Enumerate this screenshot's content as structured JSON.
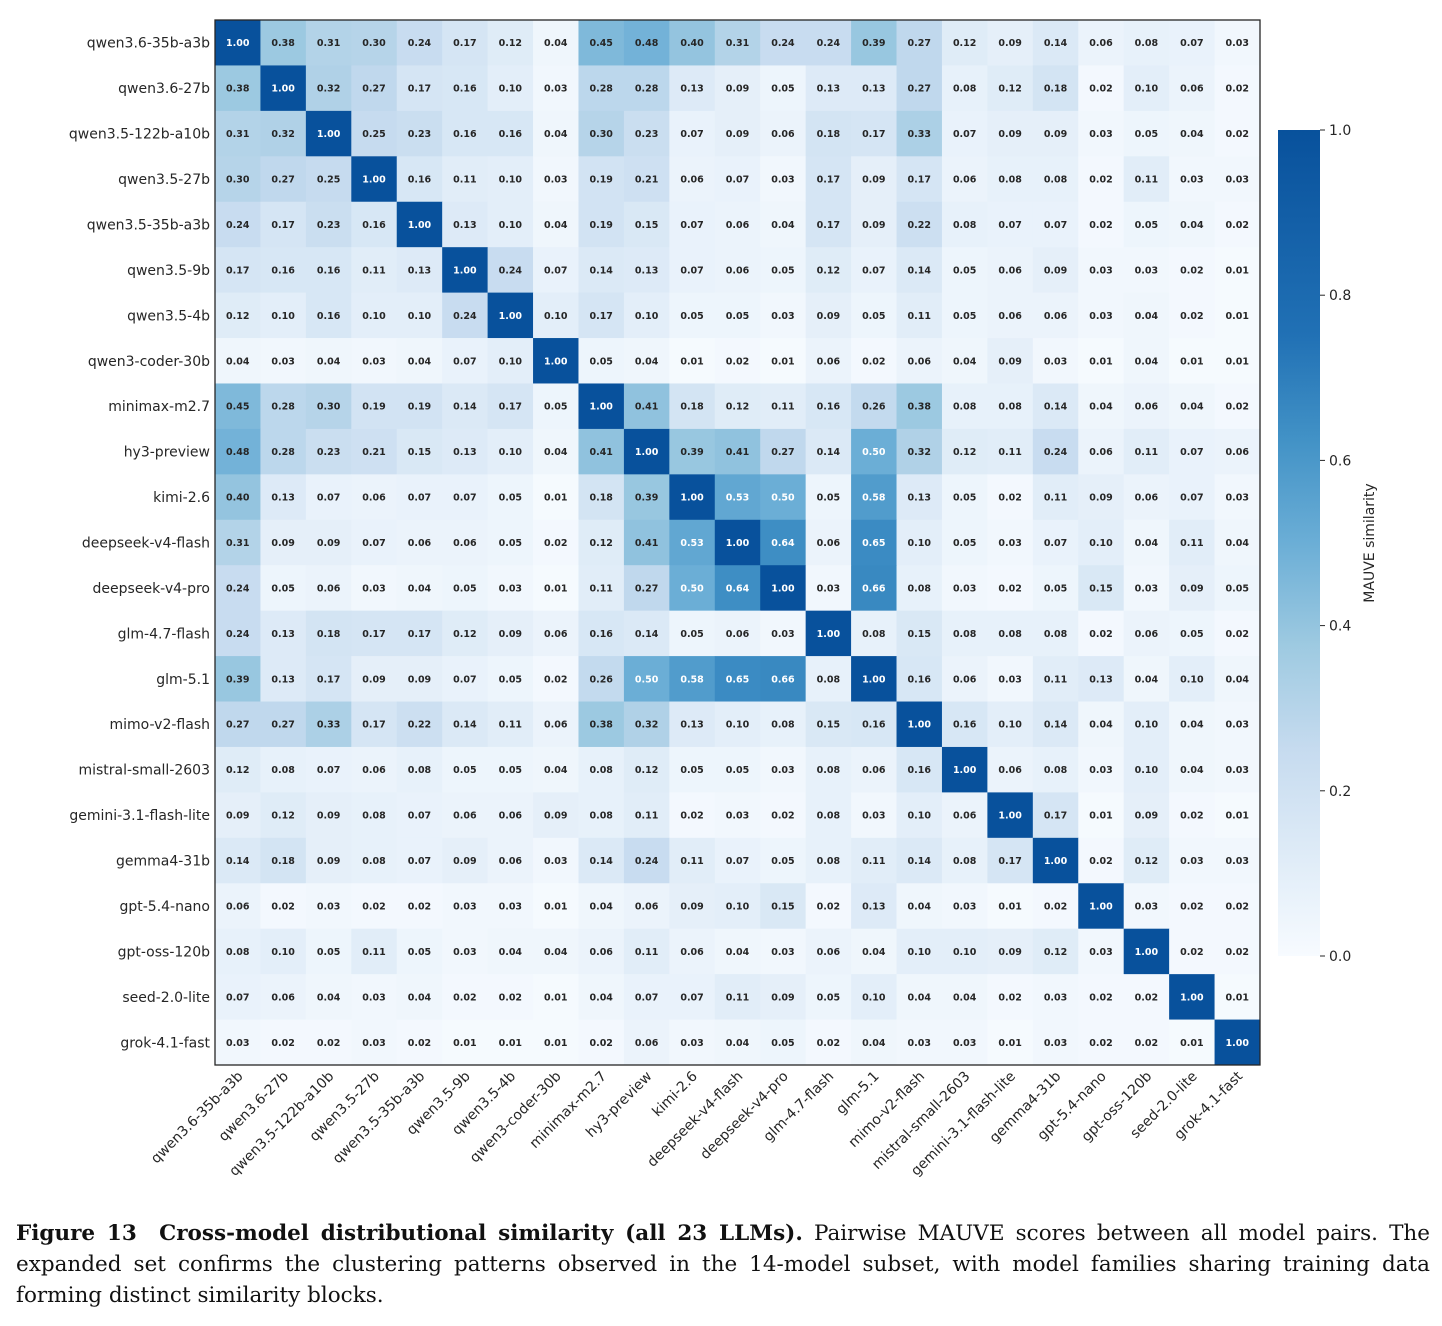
{
  "chart_data": {
    "type": "heatmap",
    "title": "",
    "xlabel": "",
    "ylabel": "",
    "colorbar": {
      "label": "MAUVE similarity",
      "range": [
        0.0,
        1.0
      ],
      "ticks": [
        0.0,
        0.2,
        0.4,
        0.6,
        0.8,
        1.0
      ],
      "tick_labels": [
        "0.0",
        "0.2",
        "0.4",
        "0.6",
        "0.8",
        "1.0"
      ],
      "colormap": "Blues",
      "colors": {
        "low": "#f7fbff",
        "high": "#08519c"
      }
    },
    "labels": [
      "qwen3.6-35b-a3b",
      "qwen3.6-27b",
      "qwen3.5-122b-a10b",
      "qwen3.5-27b",
      "qwen3.5-35b-a3b",
      "qwen3.5-9b",
      "qwen3.5-4b",
      "qwen3-coder-30b",
      "minimax-m2.7",
      "hy3-preview",
      "kimi-2.6",
      "deepseek-v4-flash",
      "deepseek-v4-pro",
      "glm-4.7-flash",
      "glm-5.1",
      "mimo-v2-flash",
      "mistral-small-2603",
      "gemini-3.1-flash-lite",
      "gemma4-31b",
      "gpt-5.4-nano",
      "gpt-oss-120b",
      "seed-2.0-lite",
      "grok-4.1-fast"
    ],
    "matrix": [
      [
        1.0,
        0.38,
        0.31,
        0.3,
        0.24,
        0.17,
        0.12,
        0.04,
        0.45,
        0.48,
        0.4,
        0.31,
        0.24,
        0.24,
        0.39,
        0.27,
        0.12,
        0.09,
        0.14,
        0.06,
        0.08,
        0.07,
        0.03
      ],
      [
        0.38,
        1.0,
        0.32,
        0.27,
        0.17,
        0.16,
        0.1,
        0.03,
        0.28,
        0.28,
        0.13,
        0.09,
        0.05,
        0.13,
        0.13,
        0.27,
        0.08,
        0.12,
        0.18,
        0.02,
        0.1,
        0.06,
        0.02
      ],
      [
        0.31,
        0.32,
        1.0,
        0.25,
        0.23,
        0.16,
        0.16,
        0.04,
        0.3,
        0.23,
        0.07,
        0.09,
        0.06,
        0.18,
        0.17,
        0.33,
        0.07,
        0.09,
        0.09,
        0.03,
        0.05,
        0.04,
        0.02
      ],
      [
        0.3,
        0.27,
        0.25,
        1.0,
        0.16,
        0.11,
        0.1,
        0.03,
        0.19,
        0.21,
        0.06,
        0.07,
        0.03,
        0.17,
        0.09,
        0.17,
        0.06,
        0.08,
        0.08,
        0.02,
        0.11,
        0.03,
        0.03
      ],
      [
        0.24,
        0.17,
        0.23,
        0.16,
        1.0,
        0.13,
        0.1,
        0.04,
        0.19,
        0.15,
        0.07,
        0.06,
        0.04,
        0.17,
        0.09,
        0.22,
        0.08,
        0.07,
        0.07,
        0.02,
        0.05,
        0.04,
        0.02
      ],
      [
        0.17,
        0.16,
        0.16,
        0.11,
        0.13,
        1.0,
        0.24,
        0.07,
        0.14,
        0.13,
        0.07,
        0.06,
        0.05,
        0.12,
        0.07,
        0.14,
        0.05,
        0.06,
        0.09,
        0.03,
        0.03,
        0.02,
        0.01
      ],
      [
        0.12,
        0.1,
        0.16,
        0.1,
        0.1,
        0.24,
        1.0,
        0.1,
        0.17,
        0.1,
        0.05,
        0.05,
        0.03,
        0.09,
        0.05,
        0.11,
        0.05,
        0.06,
        0.06,
        0.03,
        0.04,
        0.02,
        0.01
      ],
      [
        0.04,
        0.03,
        0.04,
        0.03,
        0.04,
        0.07,
        0.1,
        1.0,
        0.05,
        0.04,
        0.01,
        0.02,
        0.01,
        0.06,
        0.02,
        0.06,
        0.04,
        0.09,
        0.03,
        0.01,
        0.04,
        0.01,
        0.01
      ],
      [
        0.45,
        0.28,
        0.3,
        0.19,
        0.19,
        0.14,
        0.17,
        0.05,
        1.0,
        0.41,
        0.18,
        0.12,
        0.11,
        0.16,
        0.26,
        0.38,
        0.08,
        0.08,
        0.14,
        0.04,
        0.06,
        0.04,
        0.02
      ],
      [
        0.48,
        0.28,
        0.23,
        0.21,
        0.15,
        0.13,
        0.1,
        0.04,
        0.41,
        1.0,
        0.39,
        0.41,
        0.27,
        0.14,
        0.5,
        0.32,
        0.12,
        0.11,
        0.24,
        0.06,
        0.11,
        0.07,
        0.06
      ],
      [
        0.4,
        0.13,
        0.07,
        0.06,
        0.07,
        0.07,
        0.05,
        0.01,
        0.18,
        0.39,
        1.0,
        0.53,
        0.5,
        0.05,
        0.58,
        0.13,
        0.05,
        0.02,
        0.11,
        0.09,
        0.06,
        0.07,
        0.03
      ],
      [
        0.31,
        0.09,
        0.09,
        0.07,
        0.06,
        0.06,
        0.05,
        0.02,
        0.12,
        0.41,
        0.53,
        1.0,
        0.64,
        0.06,
        0.65,
        0.1,
        0.05,
        0.03,
        0.07,
        0.1,
        0.04,
        0.11,
        0.04
      ],
      [
        0.24,
        0.05,
        0.06,
        0.03,
        0.04,
        0.05,
        0.03,
        0.01,
        0.11,
        0.27,
        0.5,
        0.64,
        1.0,
        0.03,
        0.66,
        0.08,
        0.03,
        0.02,
        0.05,
        0.15,
        0.03,
        0.09,
        0.05
      ],
      [
        0.24,
        0.13,
        0.18,
        0.17,
        0.17,
        0.12,
        0.09,
        0.06,
        0.16,
        0.14,
        0.05,
        0.06,
        0.03,
        1.0,
        0.08,
        0.15,
        0.08,
        0.08,
        0.08,
        0.02,
        0.06,
        0.05,
        0.02
      ],
      [
        0.39,
        0.13,
        0.17,
        0.09,
        0.09,
        0.07,
        0.05,
        0.02,
        0.26,
        0.5,
        0.58,
        0.65,
        0.66,
        0.08,
        1.0,
        0.16,
        0.06,
        0.03,
        0.11,
        0.13,
        0.04,
        0.1,
        0.04
      ],
      [
        0.27,
        0.27,
        0.33,
        0.17,
        0.22,
        0.14,
        0.11,
        0.06,
        0.38,
        0.32,
        0.13,
        0.1,
        0.08,
        0.15,
        0.16,
        1.0,
        0.16,
        0.1,
        0.14,
        0.04,
        0.1,
        0.04,
        0.03
      ],
      [
        0.12,
        0.08,
        0.07,
        0.06,
        0.08,
        0.05,
        0.05,
        0.04,
        0.08,
        0.12,
        0.05,
        0.05,
        0.03,
        0.08,
        0.06,
        0.16,
        1.0,
        0.06,
        0.08,
        0.03,
        0.1,
        0.04,
        0.03
      ],
      [
        0.09,
        0.12,
        0.09,
        0.08,
        0.07,
        0.06,
        0.06,
        0.09,
        0.08,
        0.11,
        0.02,
        0.03,
        0.02,
        0.08,
        0.03,
        0.1,
        0.06,
        1.0,
        0.17,
        0.01,
        0.09,
        0.02,
        0.01
      ],
      [
        0.14,
        0.18,
        0.09,
        0.08,
        0.07,
        0.09,
        0.06,
        0.03,
        0.14,
        0.24,
        0.11,
        0.07,
        0.05,
        0.08,
        0.11,
        0.14,
        0.08,
        0.17,
        1.0,
        0.02,
        0.12,
        0.03,
        0.03
      ],
      [
        0.06,
        0.02,
        0.03,
        0.02,
        0.02,
        0.03,
        0.03,
        0.01,
        0.04,
        0.06,
        0.09,
        0.1,
        0.15,
        0.02,
        0.13,
        0.04,
        0.03,
        0.01,
        0.02,
        1.0,
        0.03,
        0.02,
        0.02
      ],
      [
        0.08,
        0.1,
        0.05,
        0.11,
        0.05,
        0.03,
        0.04,
        0.04,
        0.06,
        0.11,
        0.06,
        0.04,
        0.03,
        0.06,
        0.04,
        0.1,
        0.1,
        0.09,
        0.12,
        0.03,
        1.0,
        0.02,
        0.02
      ],
      [
        0.07,
        0.06,
        0.04,
        0.03,
        0.04,
        0.02,
        0.02,
        0.01,
        0.04,
        0.07,
        0.07,
        0.11,
        0.09,
        0.05,
        0.1,
        0.04,
        0.04,
        0.02,
        0.03,
        0.02,
        0.02,
        1.0,
        0.01
      ],
      [
        0.03,
        0.02,
        0.02,
        0.03,
        0.02,
        0.01,
        0.01,
        0.01,
        0.02,
        0.06,
        0.03,
        0.04,
        0.05,
        0.02,
        0.04,
        0.03,
        0.03,
        0.01,
        0.03,
        0.02,
        0.02,
        0.01,
        1.0
      ]
    ]
  },
  "caption": {
    "figure_label": "Figure 13",
    "bold_title": "Cross-model distributional similarity (all 23 LLMs).",
    "text": "Pairwise MAUVE scores between all model pairs. The expanded set confirms the clustering patterns observed in the 14-model subset, with model families sharing training data forming distinct similarity blocks."
  }
}
